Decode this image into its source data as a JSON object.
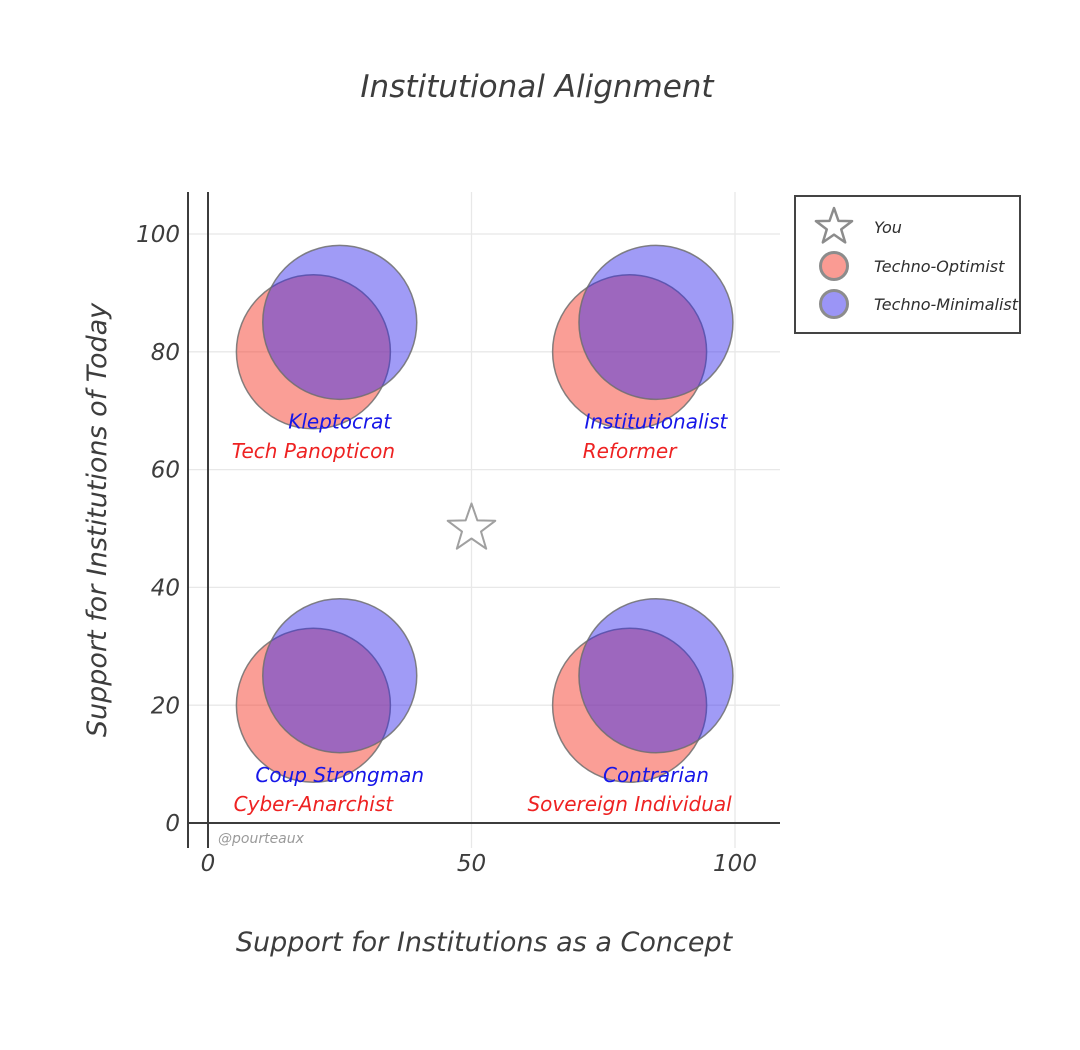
{
  "title": "Institutional Alignment",
  "watermark": "@pourteaux",
  "chart_data": {
    "type": "scatter",
    "title": "Institutional Alignment",
    "xlabel": "Support for Institutions as a Concept",
    "ylabel": "Support for Institutions of Today",
    "xlim": [
      -4,
      109
    ],
    "ylim": [
      -4,
      107
    ],
    "x_ticks": [
      0,
      50,
      100
    ],
    "y_ticks": [
      0,
      20,
      40,
      60,
      80,
      100
    ],
    "x_gridlines": [
      50,
      100
    ],
    "y_gridlines": [
      20,
      40,
      60,
      80,
      100
    ],
    "grid": true,
    "legend_position": "top-right-outside",
    "marker_radius_px": 77,
    "label_offset_y_units": -18,
    "series": [
      {
        "name": "Techno-Optimist",
        "type": "bubble",
        "fill": "rgba(245,61,45,0.5)",
        "stroke": "rgba(110,110,110,0.85)",
        "label_color": "#ee2222",
        "points": [
          {
            "x": 20,
            "y": 80,
            "label": "Tech Panopticon"
          },
          {
            "x": 80,
            "y": 80,
            "label": "Reformer"
          },
          {
            "x": 20,
            "y": 20,
            "label": "Cyber-Anarchist"
          },
          {
            "x": 80,
            "y": 20,
            "label": "Sovereign Individual"
          }
        ]
      },
      {
        "name": "Techno-Minimalist",
        "type": "bubble",
        "fill": "rgba(53,43,235,0.47)",
        "stroke": "rgba(110,110,110,0.85)",
        "label_color": "#1616e8",
        "points": [
          {
            "x": 25,
            "y": 85,
            "label": "Kleptocrat"
          },
          {
            "x": 85,
            "y": 85,
            "label": "Institutionalist"
          },
          {
            "x": 25,
            "y": 25,
            "label": "Coup Strongman"
          },
          {
            "x": 85,
            "y": 25,
            "label": "Contrarian"
          }
        ]
      },
      {
        "name": "You",
        "type": "star",
        "fill": "#ffffff",
        "stroke": "#a0a0a0",
        "points": [
          {
            "x": 50,
            "y": 50
          }
        ]
      }
    ]
  },
  "legend": {
    "items": [
      {
        "label": "You",
        "marker": "star",
        "fill": "#ffffff",
        "stroke": "#8c8c8c"
      },
      {
        "label": "Techno-Optimist",
        "marker": "circle",
        "fill": "#fa9b93",
        "stroke": "#8c8c8c"
      },
      {
        "label": "Techno-Minimalist",
        "marker": "circle",
        "fill": "#9b95f6",
        "stroke": "#8c8c8c"
      }
    ]
  }
}
